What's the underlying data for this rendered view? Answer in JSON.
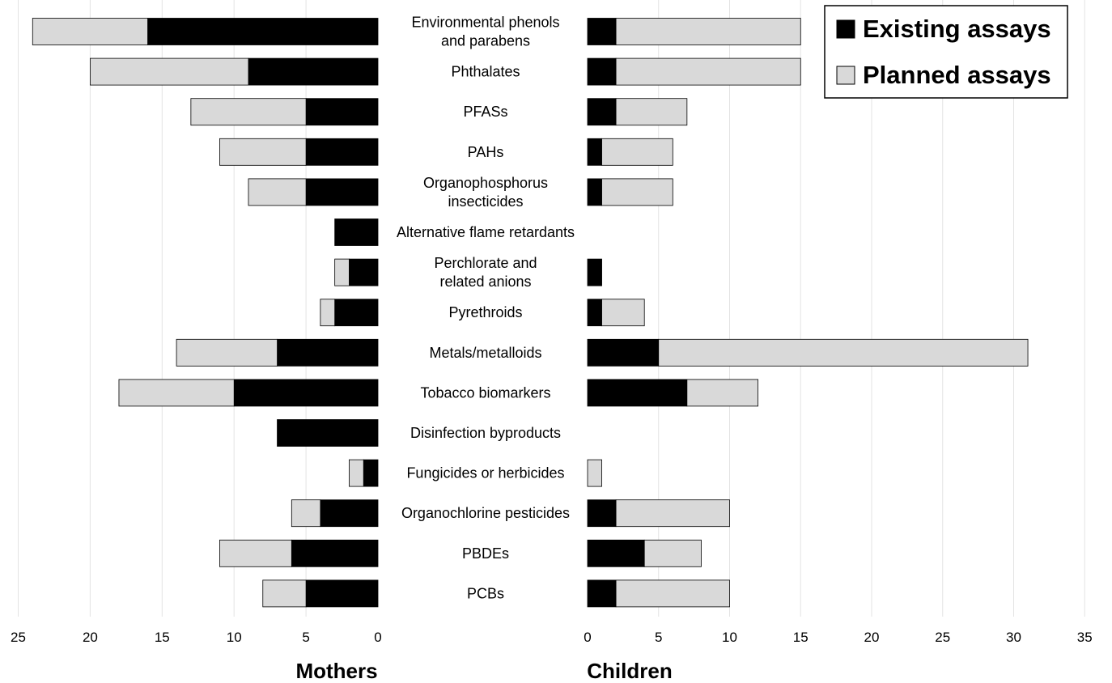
{
  "chart_data": {
    "type": "bar",
    "orientation": "horizontal",
    "layout": "back-to-back",
    "stacked": true,
    "categories": [
      [
        "Environmental phenols",
        "and parabens"
      ],
      [
        "Phthalates"
      ],
      [
        "PFASs"
      ],
      [
        "PAHs"
      ],
      [
        "Organophosphorus",
        "insecticides"
      ],
      [
        "Alternative flame retardants"
      ],
      [
        "Perchlorate and",
        "related anions"
      ],
      [
        "Pyrethroids"
      ],
      [
        "Metals/metalloids"
      ],
      [
        "Tobacco biomarkers"
      ],
      [
        "Disinfection byproducts"
      ],
      [
        "Fungicides or herbicides"
      ],
      [
        "Organochlorine pesticides"
      ],
      [
        "PBDEs"
      ],
      [
        "PCBs"
      ]
    ],
    "legend": {
      "position": "top-right",
      "entries": [
        {
          "label": "Existing assays",
          "color": "#000000"
        },
        {
          "label": "Planned assays",
          "color": "#d9d9d9"
        }
      ]
    },
    "panels": [
      {
        "xlabel": "Mothers",
        "direction": "reversed",
        "xlim": [
          0,
          25
        ],
        "ticks": [
          0,
          5,
          10,
          15,
          20,
          25
        ],
        "series": [
          {
            "name": "Existing assays",
            "values": [
              16,
              9,
              5,
              5,
              5,
              3,
              2,
              3,
              7,
              10,
              7,
              1,
              4,
              6,
              5
            ]
          },
          {
            "name": "Planned assays",
            "values": [
              8,
              11,
              8,
              6,
              4,
              0,
              1,
              1,
              7,
              8,
              0,
              1,
              2,
              5,
              3
            ]
          }
        ]
      },
      {
        "xlabel": "Children",
        "direction": "normal",
        "xlim": [
          0,
          35
        ],
        "ticks": [
          0,
          5,
          10,
          15,
          20,
          25,
          30,
          35
        ],
        "series": [
          {
            "name": "Existing assays",
            "values": [
              2,
              2,
              2,
              1,
              1,
              0,
              1,
              1,
              5,
              7,
              0,
              0,
              2,
              4,
              2
            ]
          },
          {
            "name": "Planned assays",
            "values": [
              13,
              13,
              5,
              5,
              5,
              0,
              0,
              3,
              26,
              5,
              0,
              1,
              8,
              4,
              8
            ]
          }
        ]
      }
    ],
    "grid": true
  }
}
